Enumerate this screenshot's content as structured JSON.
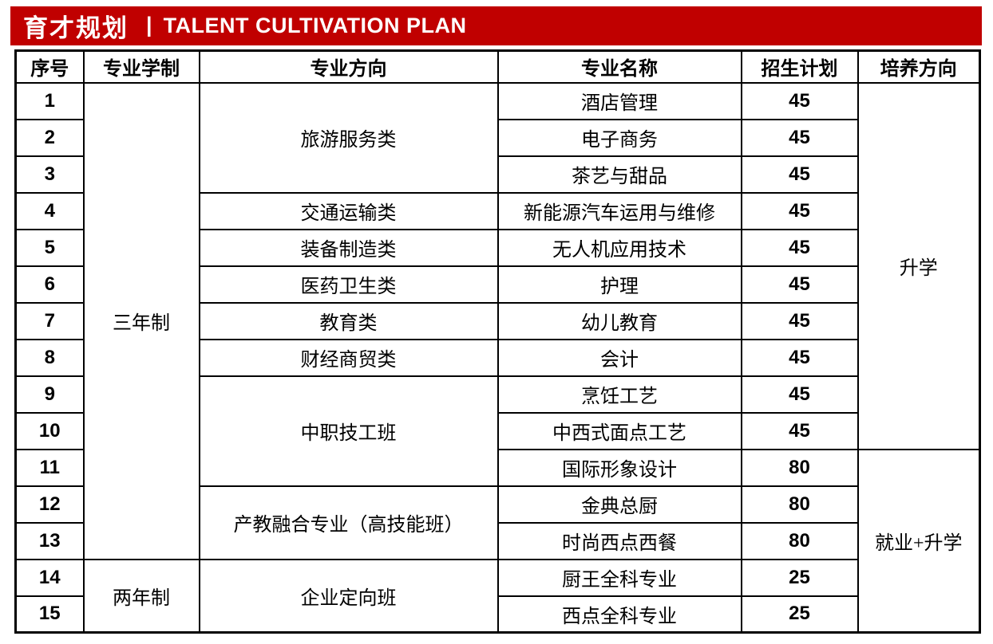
{
  "banner": {
    "title_zh": "育才规划",
    "separator": "|",
    "title_en": "TALENT CULTIVATION PLAN",
    "bg_color": "#C00000",
    "text_color": "#FFFFFF"
  },
  "table": {
    "headers": [
      "序号",
      "专业学制",
      "专业方向",
      "专业名称",
      "招生计划",
      "培养方向"
    ],
    "rows": [
      {
        "no": "1",
        "major": "酒店管理",
        "plan": "45"
      },
      {
        "no": "2",
        "major": "电子商务",
        "plan": "45"
      },
      {
        "no": "3",
        "major": "茶艺与甜品",
        "plan": "45"
      },
      {
        "no": "4",
        "major": "新能源汽车运用与维修",
        "plan": "45"
      },
      {
        "no": "5",
        "major": "无人机应用技术",
        "plan": "45"
      },
      {
        "no": "6",
        "major": "护理",
        "plan": "45"
      },
      {
        "no": "7",
        "major": "幼儿教育",
        "plan": "45"
      },
      {
        "no": "8",
        "major": "会计",
        "plan": "45"
      },
      {
        "no": "9",
        "major": "烹饪工艺",
        "plan": "45"
      },
      {
        "no": "10",
        "major": "中西式面点工艺",
        "plan": "45"
      },
      {
        "no": "11",
        "major": "国际形象设计",
        "plan": "80"
      },
      {
        "no": "12",
        "major": "金典总厨",
        "plan": "80"
      },
      {
        "no": "13",
        "major": "时尚西点西餐",
        "plan": "80"
      },
      {
        "no": "14",
        "major": "厨王全科专业",
        "plan": "25"
      },
      {
        "no": "15",
        "major": "西点全科专业",
        "plan": "25"
      }
    ],
    "duration_spans": [
      {
        "label": "三年制",
        "start": 1,
        "end": 13
      },
      {
        "label": "两年制",
        "start": 14,
        "end": 15
      }
    ],
    "direction_spans": [
      {
        "label": "旅游服务类",
        "start": 1,
        "end": 3,
        "shaded": false
      },
      {
        "label": "交通运输类",
        "start": 4,
        "end": 4,
        "shaded": true
      },
      {
        "label": "装备制造类",
        "start": 5,
        "end": 5,
        "shaded": false
      },
      {
        "label": "医药卫生类",
        "start": 6,
        "end": 6,
        "shaded": true
      },
      {
        "label": "教育类",
        "start": 7,
        "end": 7,
        "shaded": false
      },
      {
        "label": "财经商贸类",
        "start": 8,
        "end": 8,
        "shaded": true
      },
      {
        "label": "中职技工班",
        "start": 9,
        "end": 11,
        "shaded": false
      },
      {
        "label": "产教融合专业（高技能班）",
        "start": 12,
        "end": 13,
        "shaded": false
      },
      {
        "label": "企业定向班",
        "start": 14,
        "end": 15,
        "shaded": false
      }
    ],
    "training_spans": [
      {
        "label": "升学",
        "start": 1,
        "end": 10
      },
      {
        "label": "就业+升学",
        "start": 11,
        "end": 15
      }
    ],
    "shaded_rows": [
      2,
      4,
      6,
      8,
      10,
      12,
      14
    ],
    "colors": {
      "shaded": "#D9D9D9",
      "border": "#000000"
    }
  }
}
